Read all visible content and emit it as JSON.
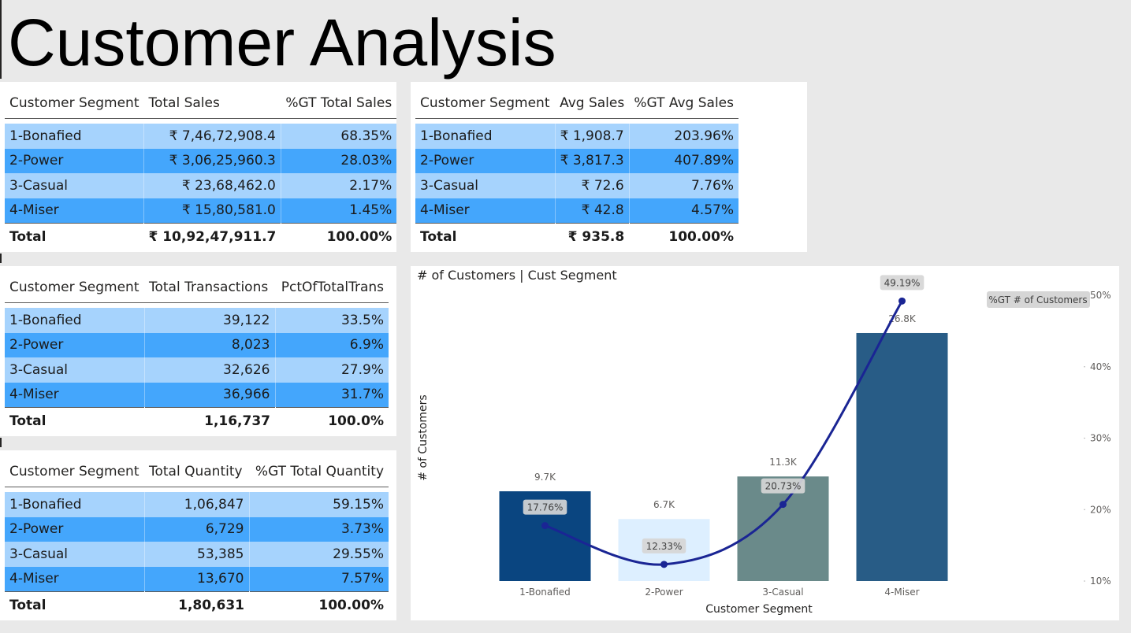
{
  "page": {
    "title": "Customer Analysis"
  },
  "colors": {
    "row_light": "#a6d3fd",
    "row_dark": "#44a6fc",
    "line": "#1a2594",
    "background": "#e9e9e9"
  },
  "sales_table": {
    "headers": [
      "Customer Segment",
      "Total Sales",
      "%GT Total Sales"
    ],
    "rows": [
      [
        "1-Bonafied",
        "₹ 7,46,72,908.4",
        "68.35%"
      ],
      [
        "2-Power",
        "₹ 3,06,25,960.3",
        "28.03%"
      ],
      [
        "3-Casual",
        "₹ 23,68,462.0",
        "2.17%"
      ],
      [
        "4-Miser",
        "₹ 15,80,581.0",
        "1.45%"
      ]
    ],
    "total": [
      "Total",
      "₹ 10,92,47,911.7",
      "100.00%"
    ]
  },
  "avg_table": {
    "headers": [
      "Customer Segment",
      "Avg Sales",
      "%GT Avg Sales"
    ],
    "rows": [
      [
        "1-Bonafied",
        "₹ 1,908.7",
        "203.96%"
      ],
      [
        "2-Power",
        "₹ 3,817.3",
        "407.89%"
      ],
      [
        "3-Casual",
        "₹ 72.6",
        "7.76%"
      ],
      [
        "4-Miser",
        "₹ 42.8",
        "4.57%"
      ]
    ],
    "total": [
      "Total",
      "₹ 935.8",
      "100.00%"
    ]
  },
  "transactions_table": {
    "headers": [
      "Customer Segment",
      "Total Transactions",
      "PctOfTotalTrans"
    ],
    "rows": [
      [
        "1-Bonafied",
        "39,122",
        "33.5%"
      ],
      [
        "2-Power",
        "8,023",
        "6.9%"
      ],
      [
        "3-Casual",
        "32,626",
        "27.9%"
      ],
      [
        "4-Miser",
        "36,966",
        "31.7%"
      ]
    ],
    "total": [
      "Total",
      "1,16,737",
      "100.0%"
    ]
  },
  "quantity_table": {
    "headers": [
      "Customer Segment",
      "Total Quantity",
      "%GT Total Quantity"
    ],
    "rows": [
      [
        "1-Bonafied",
        "1,06,847",
        "59.15%"
      ],
      [
        "2-Power",
        "6,729",
        "3.73%"
      ],
      [
        "3-Casual",
        "53,385",
        "29.55%"
      ],
      [
        "4-Miser",
        "13,670",
        "7.57%"
      ]
    ],
    "total": [
      "Total",
      "1,80,631",
      "100.00%"
    ]
  },
  "chart_data": {
    "type": "bar",
    "title": "# of Customers | Cust Segment",
    "xlabel": "Customer Segment",
    "ylabel": "# of Customers",
    "categories": [
      "1-Bonafied",
      "2-Power",
      "3-Casual",
      "4-Miser"
    ],
    "series": [
      {
        "name": "# of Customers",
        "type": "bar",
        "values": [
          9700,
          6700,
          11300,
          26800
        ],
        "labels": [
          "9.7K",
          "6.7K",
          "11.3K",
          "26.8K"
        ],
        "colors": [
          "#0a4580",
          "#ddefff",
          "#6a8a8a",
          "#285c86"
        ]
      },
      {
        "name": "%GT # of Customers",
        "type": "line",
        "values": [
          17.76,
          12.33,
          20.73,
          49.19
        ],
        "labels": [
          "17.76%",
          "12.33%",
          "20.73%",
          "49.19%"
        ],
        "color": "#1a2594"
      }
    ],
    "y2_ticks": [
      "10%",
      "20%",
      "30%",
      "40%",
      "50%"
    ],
    "y2_range": [
      10,
      50
    ],
    "legend": {
      "position": "top-right"
    },
    "grid": false
  }
}
